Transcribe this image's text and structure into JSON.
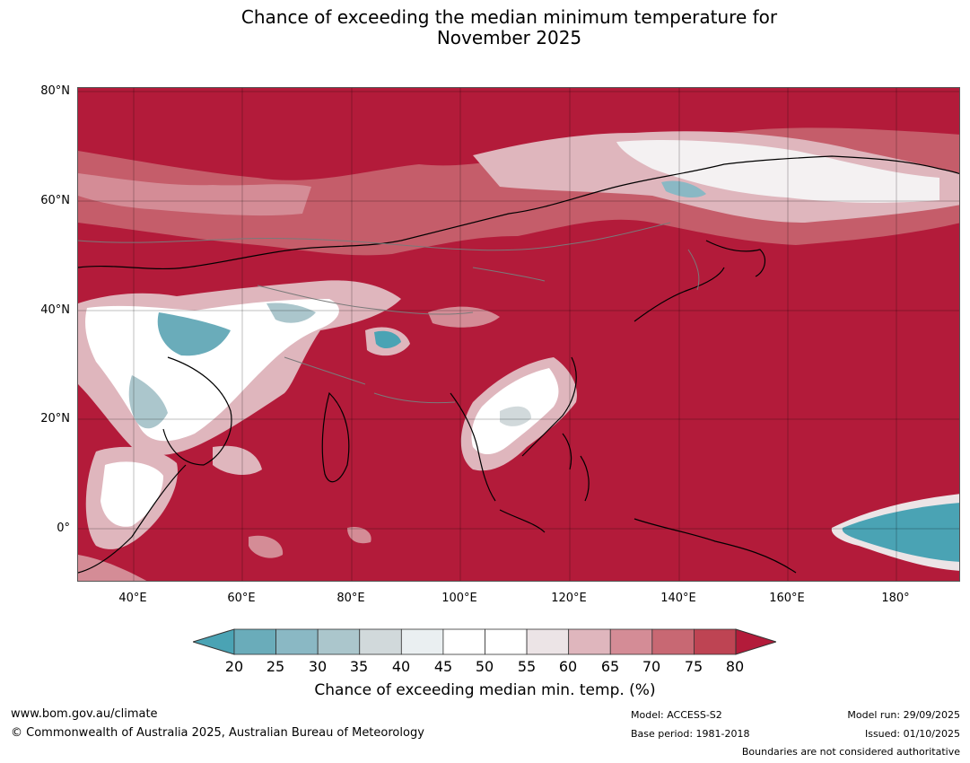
{
  "title": {
    "line1": "Chance of exceeding the median minimum temperature for",
    "line2": "November 2025"
  },
  "map": {
    "lat_labels": [
      "80°N",
      "60°N",
      "40°N",
      "20°N",
      "0°"
    ],
    "lon_labels": [
      "40°E",
      "60°E",
      "80°E",
      "100°E",
      "120°E",
      "140°E",
      "160°E",
      "180°"
    ],
    "colors": {
      "ocean_land_high": "#b31b3a",
      "land_outline": "#000000",
      "border": "#7a7a7a"
    }
  },
  "colorbar": {
    "ticks": [
      "20",
      "25",
      "30",
      "35",
      "40",
      "45",
      "50",
      "55",
      "60",
      "65",
      "70",
      "75",
      "80"
    ],
    "colors": [
      "#4aa3b4",
      "#6aacba",
      "#8ab8c4",
      "#abc6cc",
      "#d1d9db",
      "#eaeff1",
      "#ffffff",
      "#ffffff",
      "#ece4e6",
      "#dfb6bd",
      "#d48c96",
      "#c86873",
      "#be4453",
      "#b31b3a"
    ],
    "label": "Chance of exceeding median min. temp. (%)"
  },
  "footer": {
    "url": "www.bom.gov.au/climate",
    "copyright": "© Commonwealth of Australia 2025, Australian Bureau of Meteorology",
    "model": "Model: ACCESS-S2",
    "base_period": "Base period: 1981-2018",
    "model_run": "Model run: 29/09/2025",
    "issued": "Issued: 01/10/2025",
    "boundaries_note": "Boundaries are not considered authoritative"
  }
}
